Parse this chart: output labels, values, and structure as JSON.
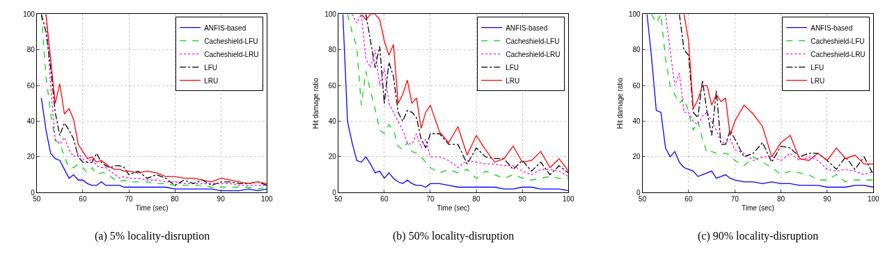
{
  "chart_data": [
    {
      "type": "line",
      "title": "(a) 5% locality-disruption",
      "xlabel": "Time (sec)",
      "xlim": [
        50,
        100
      ],
      "ylim": [
        0,
        100
      ],
      "xticks": [
        50,
        60,
        70,
        80,
        90,
        100
      ],
      "yticks": [
        0,
        20,
        40,
        60,
        80,
        100
      ],
      "grid": true,
      "legend": "top right",
      "x": [
        51,
        52,
        53,
        54,
        55,
        56,
        57,
        58,
        59,
        60,
        61,
        62,
        63,
        64,
        65,
        66,
        67,
        68,
        69,
        70,
        72,
        74,
        76,
        78,
        80,
        82,
        84,
        86,
        88,
        90,
        92,
        94,
        96,
        98,
        100
      ],
      "series": [
        {
          "name": "ANFIS-based",
          "color": "#0000ff",
          "line_style": "solid",
          "values": [
            53,
            35,
            22,
            19,
            18,
            13,
            8,
            10,
            7,
            7,
            5,
            4,
            4,
            6,
            4,
            4,
            4,
            4,
            3,
            3,
            3,
            3,
            3,
            3,
            2,
            2,
            2,
            2,
            2,
            1,
            1,
            1,
            2,
            1,
            2
          ]
        },
        {
          "name": "Cacheshield-LFU",
          "color": "#00dd00",
          "line_style": "dashed",
          "values": [
            100,
            65,
            45,
            29,
            28,
            20,
            14,
            14,
            16,
            14,
            11,
            14,
            10,
            11,
            11,
            9,
            7,
            6,
            7,
            6,
            6,
            6,
            5,
            5,
            4,
            4,
            4,
            4,
            3,
            3,
            3,
            3,
            3,
            2,
            3
          ]
        },
        {
          "name": "Cacheshield-LRU",
          "color": "#ff00ff",
          "line_style": "dotted",
          "values": [
            null,
            100,
            60,
            30,
            27,
            31,
            24,
            20,
            22,
            19,
            17,
            19,
            15,
            14,
            14,
            12,
            10,
            8,
            9,
            8,
            8,
            7,
            7,
            6,
            6,
            5,
            5,
            5,
            5,
            5,
            5,
            4,
            4,
            4,
            4
          ]
        },
        {
          "name": "LFU",
          "color": "#000000",
          "line_style": "dashdot",
          "values": [
            100,
            90,
            70,
            45,
            32,
            39,
            35,
            30,
            20,
            17,
            17,
            17,
            22,
            17,
            15,
            14,
            15,
            15,
            14,
            10,
            12,
            8,
            10,
            8,
            4,
            7,
            5,
            7,
            4,
            6,
            6,
            5,
            5,
            6,
            4
          ]
        },
        {
          "name": "LRU",
          "color": "#ff0000",
          "line_style": "solid",
          "values": [
            null,
            100,
            75,
            50,
            61,
            44,
            47,
            41,
            27,
            23,
            19,
            20,
            17,
            18,
            16,
            14,
            13,
            13,
            12,
            12,
            11,
            12,
            11,
            9,
            9,
            8,
            8,
            7,
            6,
            8,
            7,
            6,
            5,
            6,
            5
          ]
        }
      ]
    },
    {
      "type": "line",
      "title": "(b) 50% locality-disruption",
      "xlabel": "Time (sec)",
      "ylabel": "Hit damage ratio",
      "xlim": [
        50,
        100
      ],
      "ylim": [
        0,
        100
      ],
      "xticks": [
        50,
        60,
        70,
        80,
        90,
        100
      ],
      "yticks": [
        0,
        20,
        40,
        60,
        80,
        100
      ],
      "grid": true,
      "legend": "top right",
      "x": [
        51,
        52,
        53,
        54,
        55,
        56,
        57,
        58,
        59,
        60,
        61,
        62,
        63,
        64,
        65,
        66,
        67,
        68,
        69,
        70,
        72,
        74,
        76,
        78,
        80,
        82,
        84,
        86,
        88,
        90,
        92,
        94,
        96,
        98,
        100
      ],
      "series": [
        {
          "name": "ANFIS-based",
          "color": "#0000ff",
          "line_style": "solid",
          "values": [
            100,
            40,
            28,
            18,
            17,
            20,
            16,
            11,
            12,
            8,
            11,
            8,
            6,
            5,
            7,
            5,
            4,
            4,
            3,
            5,
            5,
            4,
            3,
            3,
            3,
            3,
            3,
            2,
            2,
            3,
            3,
            2,
            2,
            2,
            1
          ]
        },
        {
          "name": "Cacheshield-LFU",
          "color": "#00dd00",
          "line_style": "dashed",
          "values": [
            null,
            100,
            90,
            82,
            49,
            68,
            57,
            47,
            35,
            33,
            38,
            35,
            26,
            24,
            28,
            23,
            22,
            20,
            17,
            14,
            11,
            13,
            11,
            13,
            8,
            12,
            10,
            8,
            10,
            8,
            7,
            8,
            9,
            8,
            8
          ]
        },
        {
          "name": "Cacheshield-LRU",
          "color": "#ff00ff",
          "line_style": "dotted",
          "values": [
            null,
            null,
            100,
            95,
            100,
            75,
            70,
            80,
            60,
            70,
            50,
            45,
            40,
            35,
            28,
            27,
            33,
            25,
            30,
            20,
            20,
            18,
            14,
            18,
            17,
            16,
            16,
            15,
            15,
            12,
            10,
            13,
            13,
            12,
            9
          ]
        },
        {
          "name": "LFU",
          "color": "#000000",
          "line_style": "dashdot",
          "values": [
            null,
            null,
            null,
            null,
            null,
            100,
            85,
            70,
            82,
            50,
            73,
            65,
            45,
            40,
            46,
            45,
            42,
            30,
            25,
            33,
            33,
            27,
            27,
            16,
            25,
            20,
            19,
            19,
            13,
            18,
            12,
            17,
            10,
            15,
            11
          ]
        },
        {
          "name": "LRU",
          "color": "#ff0000",
          "line_style": "solid",
          "values": [
            null,
            null,
            null,
            null,
            100,
            97,
            100,
            100,
            97,
            85,
            77,
            83,
            50,
            55,
            63,
            50,
            53,
            36,
            45,
            49,
            34,
            28,
            37,
            21,
            32,
            24,
            17,
            19,
            26,
            17,
            18,
            23,
            14,
            19,
            12
          ]
        }
      ]
    },
    {
      "type": "line",
      "title": "(c) 90% locality-disruption",
      "xlabel": "Time (sec)",
      "ylabel": "Hit damage ratio",
      "xlim": [
        50,
        100
      ],
      "ylim": [
        0,
        100
      ],
      "xticks": [
        50,
        60,
        70,
        80,
        90,
        100
      ],
      "yticks": [
        0,
        20,
        40,
        60,
        80,
        100
      ],
      "grid": true,
      "legend": "top right",
      "x": [
        51,
        52,
        53,
        54,
        55,
        56,
        57,
        58,
        59,
        60,
        61,
        62,
        63,
        64,
        65,
        66,
        67,
        68,
        69,
        70,
        72,
        74,
        76,
        78,
        80,
        82,
        84,
        86,
        88,
        90,
        92,
        94,
        96,
        98,
        100
      ],
      "series": [
        {
          "name": "ANFIS-based",
          "color": "#0000ff",
          "line_style": "solid",
          "values": [
            100,
            75,
            46,
            45,
            25,
            20,
            23,
            17,
            14,
            13,
            12,
            9,
            10,
            11,
            12,
            8,
            9,
            10,
            8,
            7,
            6,
            6,
            5,
            6,
            5,
            5,
            4,
            4,
            4,
            3,
            3,
            3,
            4,
            4,
            3
          ]
        },
        {
          "name": "Cacheshield-LFU",
          "color": "#00dd00",
          "line_style": "dashed",
          "values": [
            null,
            100,
            95,
            100,
            75,
            60,
            55,
            50,
            53,
            45,
            35,
            40,
            30,
            22,
            23,
            22,
            22,
            22,
            21,
            18,
            15,
            20,
            17,
            14,
            10,
            12,
            11,
            10,
            7,
            7,
            10,
            6,
            7,
            7,
            7
          ]
        },
        {
          "name": "Cacheshield-LRU",
          "color": "#ff00ff",
          "line_style": "dotted",
          "values": [
            null,
            null,
            null,
            null,
            100,
            80,
            60,
            67,
            45,
            45,
            40,
            38,
            43,
            45,
            40,
            35,
            28,
            28,
            30,
            24,
            22,
            18,
            20,
            20,
            18,
            22,
            18,
            20,
            18,
            13,
            12,
            13,
            12,
            10,
            12
          ]
        },
        {
          "name": "LFU",
          "color": "#000000",
          "line_style": "dashdot",
          "values": [
            null,
            null,
            null,
            null,
            null,
            null,
            null,
            100,
            80,
            77,
            45,
            42,
            63,
            45,
            32,
            57,
            27,
            27,
            35,
            30,
            20,
            22,
            28,
            17,
            26,
            25,
            20,
            22,
            22,
            18,
            13,
            20,
            13,
            20,
            10
          ]
        },
        {
          "name": "LRU",
          "color": "#ff0000",
          "line_style": "solid",
          "values": [
            null,
            null,
            null,
            null,
            null,
            null,
            null,
            null,
            100,
            85,
            47,
            52,
            60,
            60,
            49,
            55,
            51,
            53,
            32,
            40,
            49,
            44,
            37,
            20,
            28,
            32,
            19,
            18,
            22,
            18,
            25,
            19,
            21,
            16,
            16
          ]
        }
      ]
    }
  ]
}
